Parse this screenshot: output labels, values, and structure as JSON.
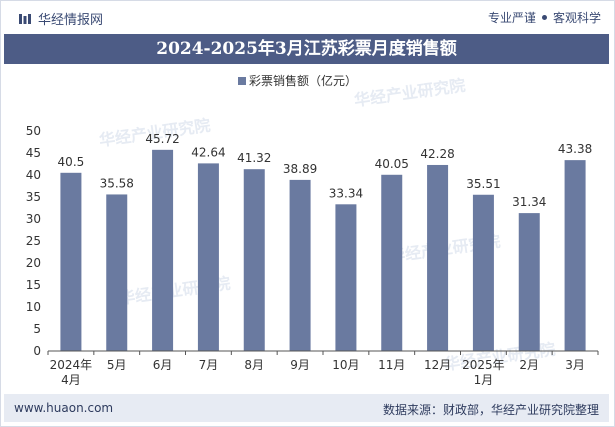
{
  "header": {
    "brand": "华经情报网",
    "tags": [
      "专业严谨",
      "客观科学"
    ]
  },
  "footer": {
    "site": "www.huaon.com",
    "source": "数据来源：财政部，华经产业研究院整理"
  },
  "watermark": "华经产业研究院",
  "colors": {
    "bar": "#6a7aa0",
    "title_bg": "#4d5c86",
    "footer_bg": "#e7ebf3",
    "text": "#333333"
  },
  "chart_data": {
    "type": "bar",
    "title": "2024-2025年3月江苏彩票月度销售额",
    "legend_position": "top-center",
    "series": [
      {
        "name": "彩票销售额（亿元）",
        "values": [
          40.5,
          35.58,
          45.72,
          42.64,
          41.32,
          38.89,
          33.34,
          40.05,
          42.28,
          35.51,
          31.34,
          43.38
        ]
      }
    ],
    "categories": [
      "2024年\n4月",
      "5月",
      "6月",
      "7月",
      "8月",
      "9月",
      "10月",
      "11月",
      "12月",
      "2025年\n1月",
      "2月",
      "3月"
    ],
    "value_labels": [
      "40.5",
      "35.58",
      "45.72",
      "42.64",
      "41.32",
      "38.89",
      "33.34",
      "40.05",
      "42.28",
      "35.51",
      "31.34",
      "43.38"
    ],
    "yticks": [
      "0",
      "5",
      "10",
      "15",
      "20",
      "25",
      "30",
      "35",
      "40",
      "45",
      "50"
    ],
    "ylim": [
      0,
      50
    ],
    "grid": false
  }
}
